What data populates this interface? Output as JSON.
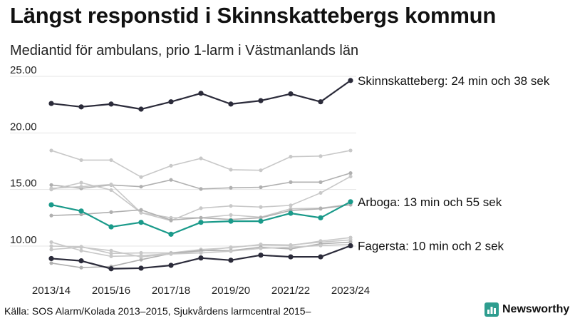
{
  "header": {
    "title": "Längst responstid i Skinnskattebergs kommun",
    "subtitle": "Mediantid för ambulans, prio 1-larm i Västmanlands län"
  },
  "footer": {
    "source": "Källa: SOS Alarm/Kolada 2013–2015, Sjukvårdens larmcentral 2015–",
    "logo_text": "Newsworthy",
    "logo_icon": "newsworthy-logo-icon"
  },
  "colors": {
    "highlight_dark": "#2b2b3a",
    "highlight_teal": "#1a9a8a",
    "background_gray": "#c8c8c8",
    "background_gray_dark": "#b0b0b0",
    "logo_green": "#2e9d8f"
  },
  "chart_data": {
    "type": "line",
    "title": "Längst responstid i Skinnskattebergs kommun",
    "subtitle": "Mediantid för ambulans, prio 1-larm i Västmanlands län",
    "x": [
      "2013/14",
      "2014/15",
      "2015/16",
      "2016/17",
      "2017/18",
      "2018/19",
      "2019/20",
      "2020/21",
      "2021/22",
      "2022/23",
      "2023/24"
    ],
    "x_tick_labels": [
      "2013/14",
      "2015/16",
      "2017/18",
      "2019/20",
      "2021/22",
      "2023/24"
    ],
    "y_tick_labels": [
      "10.00",
      "15.00",
      "20.00",
      "25.00"
    ],
    "ylim": [
      8,
      25
    ],
    "grid": true,
    "series": [
      {
        "name": "Skinnskatteberg",
        "highlight": true,
        "color": "#2b2b3a",
        "label": "Skinnskatteberg: 24 min och 38 sek",
        "values": [
          22.6,
          22.3,
          22.55,
          22.1,
          22.75,
          23.5,
          22.55,
          22.85,
          23.45,
          22.75,
          24.63
        ]
      },
      {
        "name": "Arboga",
        "highlight": true,
        "color": "#1a9a8a",
        "label": "Arboga: 13 min och 55 sek",
        "values": [
          13.65,
          13.1,
          11.7,
          12.1,
          11.05,
          12.1,
          12.2,
          12.2,
          12.9,
          12.5,
          13.92
        ]
      },
      {
        "name": "Fagersta",
        "highlight": true,
        "color": "#2b2b3a",
        "label": "Fagersta: 10 min och 2 sek",
        "values": [
          8.9,
          8.7,
          8.0,
          8.05,
          8.3,
          8.95,
          8.75,
          9.2,
          9.05,
          9.05,
          10.03
        ]
      },
      {
        "values": [
          18.45,
          17.6,
          17.6,
          16.1,
          17.1,
          17.75,
          16.75,
          16.7,
          17.9,
          17.95,
          18.45
        ]
      },
      {
        "values": [
          15.4,
          15.1,
          15.4,
          15.25,
          15.85,
          15.05,
          15.15,
          15.2,
          15.65,
          15.65,
          16.45
        ]
      },
      {
        "values": [
          15.0,
          15.6,
          14.95,
          12.95,
          12.25,
          13.35,
          13.55,
          13.45,
          13.6,
          14.7,
          16.15
        ]
      },
      {
        "values": [
          15.1,
          15.25,
          15.45,
          12.95,
          12.5,
          12.5,
          12.75,
          12.55,
          13.3,
          13.35,
          13.7
        ]
      },
      {
        "values": [
          12.7,
          12.8,
          13.0,
          13.2,
          12.3,
          12.5,
          12.35,
          12.5,
          13.15,
          13.3,
          13.65
        ]
      },
      {
        "values": [
          10.35,
          9.6,
          9.1,
          9.15,
          9.35,
          9.55,
          9.9,
          10.1,
          10.05,
          10.45,
          10.75
        ]
      },
      {
        "values": [
          10.0,
          9.95,
          9.35,
          9.4,
          9.4,
          9.7,
          9.85,
          10.15,
          10.1,
          10.35,
          10.55
        ]
      },
      {
        "values": [
          8.5,
          8.1,
          8.2,
          8.8,
          9.35,
          9.6,
          9.6,
          9.9,
          9.75,
          10.2,
          10.35
        ]
      },
      {
        "values": [
          9.7,
          9.9,
          9.6,
          9.05,
          9.3,
          9.4,
          9.55,
          9.8,
          9.9,
          10.05,
          10.15
        ]
      }
    ]
  }
}
